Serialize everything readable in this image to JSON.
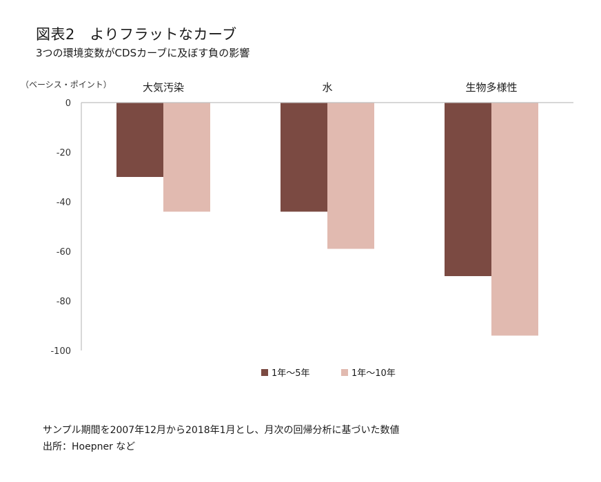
{
  "title": "図表2　よりフラットなカーブ",
  "subtitle": "3つの環境変数がCDSカーブに及ぼす負の影響",
  "unit_label": "（ベーシス・ポイント）",
  "notes": {
    "sample_period": "サンプル期間を2007年12月から2018年1月とし、月次の回帰分析に基づいた数値",
    "source": "出所：Hoepner など"
  },
  "colors": {
    "series1": "#7b4a42",
    "series2": "#e1bab0",
    "axis": "#bfbfbf"
  },
  "chart_data": {
    "type": "bar",
    "categories": [
      "大気汚染",
      "水",
      "生物多様性"
    ],
    "series": [
      {
        "name": "1年～5年",
        "values": [
          -30,
          -44,
          -70
        ]
      },
      {
        "name": "1年～10年",
        "values": [
          -44,
          -59,
          -94
        ]
      }
    ],
    "ylim": [
      -100,
      0
    ],
    "yticks": [
      0,
      -20,
      -40,
      -60,
      -80,
      -100
    ],
    "ylabel": "（ベーシス・ポイント）",
    "xlabel": "",
    "legend": "bottom",
    "category_labels_position": "top",
    "grid": false
  }
}
